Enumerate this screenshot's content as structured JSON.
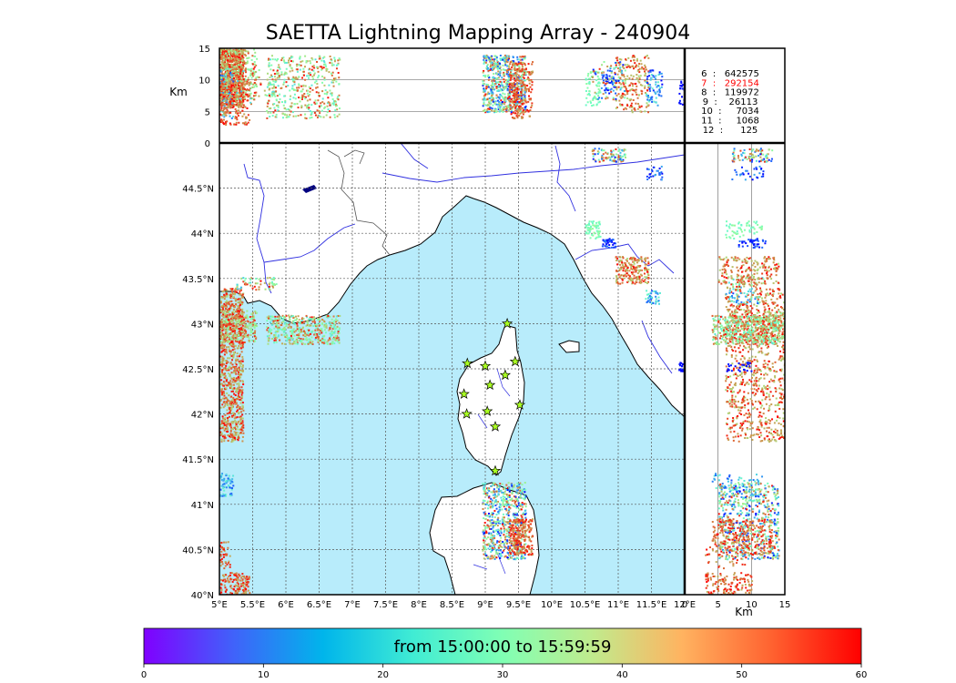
{
  "chart_data": {
    "type": "scatter",
    "title": "SAETTA Lightning Mapping Array - 240904",
    "time_range_label": "from 15:00:00 to 15:59:59",
    "colors": {
      "sea": "#b8ecfb",
      "land": "#ffffff",
      "coast": "#000000",
      "rivers": "#3030e0",
      "borders": "#555555",
      "grid": "#555555",
      "station": "#aaff22",
      "highlight": "#ff0000"
    },
    "map": {
      "lon_range": [
        5.0,
        12.0
      ],
      "lat_range": [
        40.0,
        45.0
      ],
      "xticks": [
        {
          "value": 5.0,
          "label": "5°E"
        },
        {
          "value": 5.5,
          "label": "5.5°E"
        },
        {
          "value": 6.0,
          "label": "6°E"
        },
        {
          "value": 6.5,
          "label": "6.5°E"
        },
        {
          "value": 7.0,
          "label": "7°E"
        },
        {
          "value": 7.5,
          "label": "7.5°E"
        },
        {
          "value": 8.0,
          "label": "8°E"
        },
        {
          "value": 8.5,
          "label": "8.5°E"
        },
        {
          "value": 9.0,
          "label": "9°E"
        },
        {
          "value": 9.5,
          "label": "9.5°E"
        },
        {
          "value": 10.0,
          "label": "10°E"
        },
        {
          "value": 10.5,
          "label": "10.5°E"
        },
        {
          "value": 11.0,
          "label": "11°E"
        },
        {
          "value": 11.5,
          "label": "11.5°E"
        },
        {
          "value": 12.0,
          "label": "12°E"
        }
      ],
      "yticks": [
        {
          "value": 40.0,
          "label": "40°N"
        },
        {
          "value": 40.5,
          "label": "40.5°N"
        },
        {
          "value": 41.0,
          "label": "41°N"
        },
        {
          "value": 41.5,
          "label": "41.5°N"
        },
        {
          "value": 42.0,
          "label": "42°N"
        },
        {
          "value": 42.5,
          "label": "42.5°N"
        },
        {
          "value": 43.0,
          "label": "43°N"
        },
        {
          "value": 43.5,
          "label": "43.5°N"
        },
        {
          "value": 44.0,
          "label": "44°N"
        },
        {
          "value": 44.5,
          "label": "44.5°N"
        }
      ]
    },
    "altitude_axis": {
      "label": "Km",
      "range": [
        0,
        15
      ],
      "ticks": [
        {
          "value": 0,
          "label": "0"
        },
        {
          "value": 5,
          "label": "5"
        },
        {
          "value": 10,
          "label": "10"
        },
        {
          "value": 15,
          "label": "15"
        }
      ]
    },
    "stations": [
      {
        "lon": 9.33,
        "lat": 43.0
      },
      {
        "lon": 8.73,
        "lat": 42.56
      },
      {
        "lon": 9.0,
        "lat": 42.53
      },
      {
        "lon": 9.45,
        "lat": 42.58
      },
      {
        "lon": 9.3,
        "lat": 42.43
      },
      {
        "lon": 9.07,
        "lat": 42.32
      },
      {
        "lon": 8.68,
        "lat": 42.22
      },
      {
        "lon": 9.52,
        "lat": 42.1
      },
      {
        "lon": 9.03,
        "lat": 42.03
      },
      {
        "lon": 8.72,
        "lat": 42.0
      },
      {
        "lon": 9.15,
        "lat": 41.86
      },
      {
        "lon": 9.15,
        "lat": 41.37
      }
    ],
    "clusters": [
      {
        "lon": [
          5.0,
          5.35
        ],
        "lat": [
          41.7,
          43.4
        ],
        "alt": [
          6,
          15
        ],
        "count": 900,
        "tmin": 40,
        "tmax": 60
      },
      {
        "lon": [
          5.0,
          5.55
        ],
        "lat": [
          42.8,
          43.15
        ],
        "alt": [
          7,
          15
        ],
        "count": 250,
        "tmin": 30,
        "tmax": 60
      },
      {
        "lon": [
          5.0,
          5.2
        ],
        "lat": [
          41.1,
          41.35
        ],
        "alt": [
          4,
          12
        ],
        "count": 60,
        "tmin": 5,
        "tmax": 25
      },
      {
        "lon": [
          5.0,
          5.45
        ],
        "lat": [
          40.0,
          40.25
        ],
        "alt": [
          3,
          10
        ],
        "count": 140,
        "tmin": 45,
        "tmax": 60
      },
      {
        "lon": [
          5.0,
          5.15
        ],
        "lat": [
          40.3,
          40.6
        ],
        "alt": [
          3,
          9
        ],
        "count": 40,
        "tmin": 45,
        "tmax": 60
      },
      {
        "lon": [
          5.25,
          5.85
        ],
        "lat": [
          43.38,
          43.52
        ],
        "alt": [
          6,
          12
        ],
        "count": 60,
        "tmin": 15,
        "tmax": 60
      },
      {
        "lon": [
          5.7,
          6.8
        ],
        "lat": [
          42.78,
          43.1
        ],
        "alt": [
          4,
          14
        ],
        "count": 450,
        "tmin": 20,
        "tmax": 60
      },
      {
        "lon": [
          8.95,
          9.6
        ],
        "lat": [
          40.4,
          41.25
        ],
        "alt": [
          5,
          14
        ],
        "count": 650,
        "tmin": 0,
        "tmax": 60
      },
      {
        "lon": [
          9.35,
          9.7
        ],
        "lat": [
          40.45,
          40.85
        ],
        "alt": [
          4,
          13
        ],
        "count": 250,
        "tmin": 45,
        "tmax": 60
      },
      {
        "lon": [
          10.5,
          10.72
        ],
        "lat": [
          43.95,
          44.15
        ],
        "alt": [
          6,
          12
        ],
        "count": 60,
        "tmin": 25,
        "tmax": 35
      },
      {
        "lon": [
          10.75,
          10.95
        ],
        "lat": [
          43.85,
          43.95
        ],
        "alt": [
          8,
          12
        ],
        "count": 40,
        "tmin": 0,
        "tmax": 10
      },
      {
        "lon": [
          10.95,
          11.45
        ],
        "lat": [
          43.45,
          43.75
        ],
        "alt": [
          5,
          14
        ],
        "count": 200,
        "tmin": 40,
        "tmax": 60
      },
      {
        "lon": [
          11.4,
          11.62
        ],
        "lat": [
          43.22,
          43.38
        ],
        "alt": [
          6,
          11
        ],
        "count": 40,
        "tmin": 5,
        "tmax": 25
      },
      {
        "lon": [
          10.6,
          11.1
        ],
        "lat": [
          44.8,
          44.95
        ],
        "alt": [
          7,
          13
        ],
        "count": 90,
        "tmin": 0,
        "tmax": 60
      },
      {
        "lon": [
          11.42,
          11.65
        ],
        "lat": [
          44.6,
          44.75
        ],
        "alt": [
          7,
          12
        ],
        "count": 30,
        "tmin": 0,
        "tmax": 15
      },
      {
        "lon": [
          11.9,
          12.0
        ],
        "lat": [
          42.48,
          42.58
        ],
        "alt": [
          6,
          10
        ],
        "count": 25,
        "tmin": 0,
        "tmax": 2
      }
    ],
    "counts_legend": [
      {
        "label": "6  :   642575",
        "highlight": false
      },
      {
        "label": "7  :   292154",
        "highlight": true
      },
      {
        "label": "8  :   119972",
        "highlight": false
      },
      {
        "label": "9  :    26113",
        "highlight": false
      },
      {
        "label": "10  :     7034",
        "highlight": false
      },
      {
        "label": "11  :     1068",
        "highlight": false
      },
      {
        "label": "12  :      125",
        "highlight": false
      }
    ],
    "colorbar": {
      "range": [
        0,
        60
      ],
      "ticks": [
        {
          "value": 0,
          "label": "0"
        },
        {
          "value": 10,
          "label": "10"
        },
        {
          "value": 20,
          "label": "20"
        },
        {
          "value": 30,
          "label": "30"
        },
        {
          "value": 40,
          "label": "40"
        },
        {
          "value": 50,
          "label": "50"
        },
        {
          "value": 60,
          "label": "60"
        }
      ]
    }
  }
}
